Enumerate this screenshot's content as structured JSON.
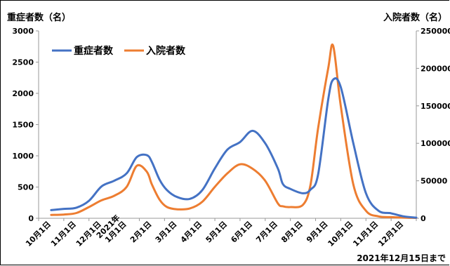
{
  "left_axis_title": "重症者数（名）",
  "right_axis_title": "入院者数（名）",
  "footnote": "2021年12月15日まで",
  "chart_data": {
    "type": "line",
    "x_categories": [
      "10月1日",
      "11月1日",
      "12月1日",
      "2021年 1月1日",
      "2月1日",
      "3月1日",
      "4月1日",
      "5月1日",
      "6月1日",
      "7月1日",
      "8月1日",
      "9月1日",
      "10月1日",
      "11月1日",
      "12月1日"
    ],
    "ylim_left": [
      0,
      3000
    ],
    "ylim_right": [
      0,
      250000
    ],
    "left_ticks": [
      "3000",
      "2500",
      "2000",
      "1500",
      "1000",
      "500",
      "0"
    ],
    "right_ticks": [
      "250000",
      "200000",
      "150000",
      "100000",
      "50000",
      "0"
    ],
    "legend_position": "top-left",
    "grid": false,
    "colors": {
      "severe": "#4472C4",
      "hospitalized": "#ED7D31"
    },
    "series": [
      {
        "name": "重症者数",
        "axis": "left",
        "x": [
          0,
          0.5,
          1,
          1.5,
          2,
          2.5,
          3,
          3.4,
          3.8,
          4.0,
          4.3,
          4.6,
          5,
          5.5,
          6,
          6.5,
          7,
          7.5,
          8,
          8.5,
          9,
          9.2,
          9.5,
          10,
          10.3,
          10.6,
          11,
          11.2,
          11.5,
          12,
          12.5,
          13,
          13.5,
          14,
          14.5
        ],
        "values": [
          130,
          150,
          170,
          280,
          510,
          600,
          720,
          980,
          1010,
          900,
          620,
          450,
          340,
          310,
          450,
          800,
          1100,
          1220,
          1400,
          1200,
          800,
          550,
          470,
          400,
          460,
          700,
          1900,
          2220,
          2100,
          1200,
          400,
          120,
          80,
          30,
          10
        ]
      },
      {
        "name": "入院者数",
        "axis": "right",
        "x": [
          0,
          0.5,
          1,
          1.5,
          2,
          2.5,
          3,
          3.4,
          3.8,
          4.0,
          4.3,
          4.6,
          5,
          5.5,
          6,
          6.5,
          7,
          7.5,
          8,
          8.5,
          9,
          9.2,
          9.5,
          10,
          10.3,
          10.6,
          11,
          11.2,
          11.5,
          12,
          12.5,
          13,
          13.5,
          14,
          14.5
        ],
        "values": [
          4500,
          5000,
          7000,
          15000,
          24000,
          30000,
          42000,
          70000,
          62000,
          45000,
          25000,
          15000,
          12000,
          13000,
          22000,
          42000,
          60000,
          72000,
          66000,
          50000,
          20000,
          16000,
          15000,
          18000,
          45000,
          120000,
          200000,
          230000,
          150000,
          45000,
          10000,
          2500,
          1500,
          800,
          500
        ]
      }
    ]
  }
}
